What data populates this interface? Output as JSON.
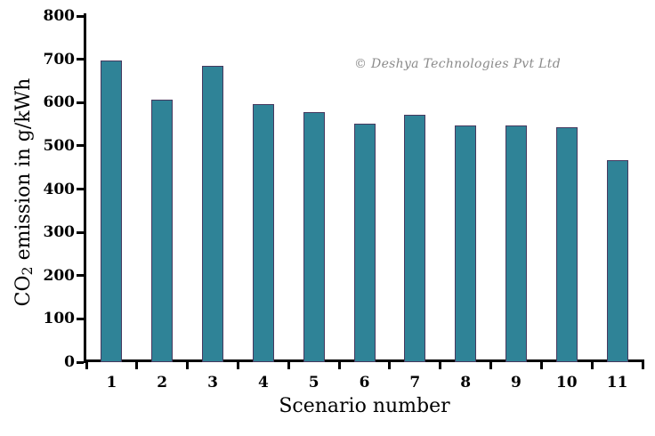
{
  "watermark": {
    "text": "© Deshya Technologies Pvt Ltd",
    "color": "#8a8a8a"
  },
  "chart_data": {
    "type": "bar",
    "title": "",
    "xlabel": "Scenario number",
    "ylabel": "CO2 emission in g/kWh",
    "ylabel_parts": {
      "prefix": "CO",
      "subscript": "2",
      "suffix": " emission in g/kWh"
    },
    "categories": [
      "1",
      "2",
      "3",
      "4",
      "5",
      "6",
      "7",
      "8",
      "9",
      "10",
      "11"
    ],
    "values": [
      697,
      607,
      684,
      596,
      577,
      552,
      571,
      548,
      548,
      543,
      467
    ],
    "series_name": "CO2 emission in g/kWh",
    "ylim": [
      0,
      800
    ],
    "yticks": [
      0,
      100,
      200,
      300,
      400,
      500,
      600,
      700,
      800
    ],
    "grid": false,
    "legend": false,
    "colors": {
      "bar_fill": "#2F8397",
      "bar_border": "#46395F",
      "axis": "#000000",
      "text": "#000000"
    }
  }
}
